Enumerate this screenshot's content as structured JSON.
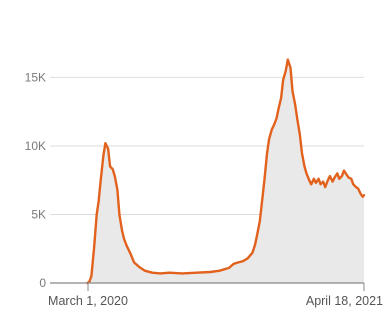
{
  "chart_data": {
    "type": "line",
    "title": "",
    "xlabel": "",
    "ylabel": "",
    "x_range": [
      "2020-02-15",
      "2021-04-18"
    ],
    "ylim": [
      0,
      17000
    ],
    "y_ticks": [
      0,
      5000,
      10000,
      15000
    ],
    "y_tick_labels": [
      "0",
      "5K",
      "10K",
      "15K"
    ],
    "x_tick_labels": [
      {
        "date": "2020-03-01",
        "label": "March 1, 2020"
      },
      {
        "date": "2021-04-18",
        "label": "April 18, 2021"
      }
    ],
    "grid": "horizontal",
    "colors": {
      "line": "#e2611c",
      "area": "#e9e9e9",
      "grid": "#dddddd",
      "axis": "#888888"
    },
    "series": [
      {
        "x": [
          "2020-02-29",
          "2020-03-03",
          "2020-03-06",
          "2020-03-10",
          "2020-03-14",
          "2020-03-17",
          "2020-03-20",
          "2020-03-24",
          "2020-03-27",
          "2020-03-31",
          "2020-04-03",
          "2020-04-07",
          "2020-04-10",
          "2020-04-14",
          "2020-04-17",
          "2020-04-21",
          "2020-04-24",
          "2020-04-28",
          "2020-05-03",
          "2020-05-09",
          "2020-05-16",
          "2020-05-25",
          "2020-06-05",
          "2020-06-17",
          "2020-07-01",
          "2020-07-20",
          "2020-08-10",
          "2020-08-31",
          "2020-09-14",
          "2020-09-28",
          "2020-10-05",
          "2020-10-12",
          "2020-10-19",
          "2020-10-26",
          "2020-11-02",
          "2020-11-06",
          "2020-11-09",
          "2020-11-13",
          "2020-11-16",
          "2020-11-20",
          "2020-11-24",
          "2020-11-27",
          "2020-12-01",
          "2020-12-04",
          "2020-12-08",
          "2020-12-11",
          "2020-12-15",
          "2020-12-18",
          "2020-12-22",
          "2020-12-25",
          "2020-12-29",
          "2021-01-01",
          "2021-01-05",
          "2021-01-08",
          "2021-01-12",
          "2021-01-15",
          "2021-01-19",
          "2021-01-22",
          "2021-01-26",
          "2021-01-29",
          "2021-02-02",
          "2021-02-05",
          "2021-02-09",
          "2021-02-12",
          "2021-02-16",
          "2021-02-19",
          "2021-02-23",
          "2021-02-26",
          "2021-03-02",
          "2021-03-05",
          "2021-03-09",
          "2021-03-12",
          "2021-03-16",
          "2021-03-19",
          "2021-03-23",
          "2021-03-26",
          "2021-03-30",
          "2021-04-02",
          "2021-04-06",
          "2021-04-09",
          "2021-04-13",
          "2021-04-16",
          "2021-04-18"
        ],
        "y": [
          0,
          100,
          500,
          2500,
          5000,
          6000,
          7500,
          9300,
          10200,
          9800,
          8500,
          8300,
          7800,
          6800,
          5000,
          3800,
          3200,
          2700,
          2200,
          1500,
          1200,
          900,
          750,
          700,
          750,
          700,
          750,
          800,
          900,
          1100,
          1400,
          1500,
          1600,
          1800,
          2200,
          2800,
          3500,
          4500,
          5800,
          7500,
          9500,
          10500,
          11200,
          11500,
          12000,
          12700,
          13500,
          14800,
          15500,
          16300,
          15700,
          14000,
          13000,
          12000,
          10800,
          9500,
          8500,
          8000,
          7500,
          7200,
          7600,
          7300,
          7600,
          7200,
          7400,
          7000,
          7500,
          7800,
          7400,
          7700,
          8000,
          7600,
          7800,
          8200,
          7900,
          7700,
          7600,
          7200,
          7000,
          6900,
          6500,
          6300,
          6400
        ]
      }
    ]
  }
}
